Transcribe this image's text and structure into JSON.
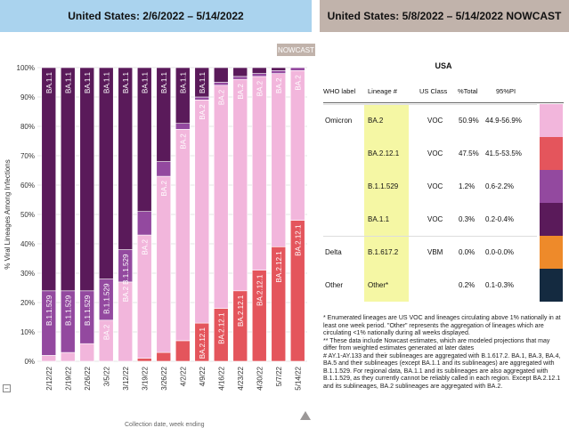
{
  "header": {
    "left_title": "United States: 2/6/2022 – 5/14/2022",
    "right_title": "United States: 5/8/2022 – 5/14/2022 NOWCAST",
    "nowcast_tab": "NOWCAST"
  },
  "colors": {
    "BA.2": "#f2b6dc",
    "BA.2.12.1": "#e4555c",
    "B.1.1.529": "#93499f",
    "BA.1.1": "#5a1a5a",
    "B.1.617.2": "#ee8a2a",
    "Other": "#142a40",
    "lineage_highlight": "#f5f7a4",
    "left_header_bg": "#aad3ee",
    "right_header_bg": "#c1b3ab"
  },
  "chart_data": {
    "type": "bar",
    "stacked": true,
    "ylabel": "% Viral Lineages Among Infections",
    "xlabel": "Collection date, week ending",
    "ylim": [
      0,
      100
    ],
    "yticks": [
      "0%",
      "10%",
      "20%",
      "30%",
      "40%",
      "50%",
      "60%",
      "70%",
      "80%",
      "90%",
      "100%"
    ],
    "categories": [
      "2/12/22",
      "2/19/22",
      "2/26/22",
      "3/5/22",
      "3/12/22",
      "3/19/22",
      "3/26/22",
      "4/2/22",
      "4/9/22",
      "4/16/22",
      "4/23/22",
      "4/30/22",
      "5/7/22",
      "5/14/22"
    ],
    "nowcast_from_index": 13,
    "series": [
      {
        "name": "BA.2.12.1",
        "color_key": "BA.2.12.1",
        "values": [
          0,
          0,
          0,
          0,
          0,
          1,
          3,
          7,
          13,
          18,
          24,
          31,
          39,
          48
        ]
      },
      {
        "name": "BA.2",
        "color_key": "BA.2",
        "values": [
          2,
          3,
          6,
          14,
          27,
          42,
          60,
          72,
          76,
          76,
          72,
          66,
          59,
          51
        ]
      },
      {
        "name": "B.1.1.529",
        "color_key": "B.1.1.529",
        "values": [
          22,
          21,
          18,
          14,
          11,
          8,
          5,
          2,
          1,
          1,
          1,
          1,
          1,
          1
        ]
      },
      {
        "name": "BA.1.1",
        "color_key": "BA.1.1",
        "values": [
          76,
          76,
          76,
          72,
          62,
          49,
          32,
          19,
          10,
          5,
          3,
          2,
          1,
          0
        ]
      }
    ],
    "segment_labels": [
      {
        "bar": 0,
        "series": "BA.1.1",
        "text": "BA.1.1"
      },
      {
        "bar": 0,
        "series": "B.1.1.529",
        "text": "B.1.1.529"
      },
      {
        "bar": 1,
        "series": "BA.1.1",
        "text": "BA.1.1"
      },
      {
        "bar": 1,
        "series": "B.1.1.529",
        "text": "B.1.1.529"
      },
      {
        "bar": 2,
        "series": "BA.1.1",
        "text": "BA.1.1"
      },
      {
        "bar": 2,
        "series": "B.1.1.529",
        "text": "B.1.1.529"
      },
      {
        "bar": 3,
        "series": "BA.1.1",
        "text": "BA.1.1"
      },
      {
        "bar": 3,
        "series": "B.1.1.529",
        "text": "B.1.1.529"
      },
      {
        "bar": 3,
        "series": "BA.2",
        "text": "BA.2"
      },
      {
        "bar": 4,
        "series": "BA.1.1",
        "text": "BA.1.1"
      },
      {
        "bar": 4,
        "series": "B.1.1.529",
        "text": "B.1.1.529"
      },
      {
        "bar": 4,
        "series": "BA.2",
        "text": "BA.2"
      },
      {
        "bar": 5,
        "series": "BA.1.1",
        "text": "BA.1.1"
      },
      {
        "bar": 5,
        "series": "BA.2",
        "text": "BA.2"
      },
      {
        "bar": 6,
        "series": "BA.1.1",
        "text": "BA.1.1"
      },
      {
        "bar": 6,
        "series": "BA.2",
        "text": "BA.2"
      },
      {
        "bar": 7,
        "series": "BA.1.1",
        "text": "BA.1.1"
      },
      {
        "bar": 7,
        "series": "BA.2",
        "text": "BA.2"
      },
      {
        "bar": 8,
        "series": "BA.1.1",
        "text": "BA.1.1"
      },
      {
        "bar": 8,
        "series": "BA.2",
        "text": "BA.2"
      },
      {
        "bar": 8,
        "series": "BA.2.12.1",
        "text": "BA.2.12.1"
      },
      {
        "bar": 9,
        "series": "BA.2",
        "text": "BA.2"
      },
      {
        "bar": 9,
        "series": "BA.2.12.1",
        "text": "BA.2.12.1"
      },
      {
        "bar": 10,
        "series": "BA.2",
        "text": "BA.2"
      },
      {
        "bar": 10,
        "series": "BA.2.12.1",
        "text": "BA.2.12.1"
      },
      {
        "bar": 11,
        "series": "BA.2",
        "text": "BA.2"
      },
      {
        "bar": 11,
        "series": "BA.2.12.1",
        "text": "BA.2.12.1"
      },
      {
        "bar": 12,
        "series": "BA.2",
        "text": "BA.2"
      },
      {
        "bar": 12,
        "series": "BA.2.12.1",
        "text": "BA.2.12.1"
      },
      {
        "bar": 13,
        "series": "BA.2",
        "text": "BA.2"
      },
      {
        "bar": 13,
        "series": "BA.2.12.1",
        "text": "BA.2.12.1"
      }
    ]
  },
  "nowcast": {
    "region": "USA",
    "columns": [
      "WHO label",
      "Lineage #",
      "US Class",
      "%Total",
      "95%PI"
    ],
    "rows": [
      {
        "who": "Omicron",
        "lineage": "BA.2",
        "class": "VOC",
        "total": "50.9%",
        "pi": "44.9-56.9%",
        "color_key": "BA.2"
      },
      {
        "who": "",
        "lineage": "BA.2.12.1",
        "class": "VOC",
        "total": "47.5%",
        "pi": "41.5-53.5%",
        "color_key": "BA.2.12.1"
      },
      {
        "who": "",
        "lineage": "B.1.1.529",
        "class": "VOC",
        "total": "1.2%",
        "pi": "0.6-2.2%",
        "color_key": "B.1.1.529"
      },
      {
        "who": "",
        "lineage": "BA.1.1",
        "class": "VOC",
        "total": "0.3%",
        "pi": "0.2-0.4%",
        "color_key": "BA.1.1"
      },
      {
        "who": "Delta",
        "lineage": "B.1.617.2",
        "class": "VBM",
        "total": "0.0%",
        "pi": "0.0-0.0%",
        "color_key": "B.1.617.2"
      },
      {
        "who": "Other",
        "lineage": "Other*",
        "class": "",
        "total": "0.2%",
        "pi": "0.1-0.3%",
        "color_key": "Other"
      }
    ]
  },
  "footnotes": [
    "*      Enumerated lineages are US VOC and lineages circulating above 1% nationally in at least one week period. \"Other\" represents the aggregation of lineages which are circulating <1% nationally during all weeks displayed.",
    "**     These data include Nowcast estimates, which are modeled projections that may differ from weighted estimates generated at later dates",
    "#      AY.1-AY.133 and their sublineages are aggregated with B.1.617.2. BA.1, BA.3, BA.4, BA.5 and their sublineages (except BA.1.1 and its sublineages) are aggregated with B.1.1.529. For regional data, BA.1.1 and its sublineages are also aggregated with B.1.1.529, as they currently cannot be reliably called in each region. Except BA.2.12.1 and its sublineages, BA.2 sublineages are aggregated with BA.2."
  ],
  "controls": {
    "collapse_glyph": "–"
  }
}
